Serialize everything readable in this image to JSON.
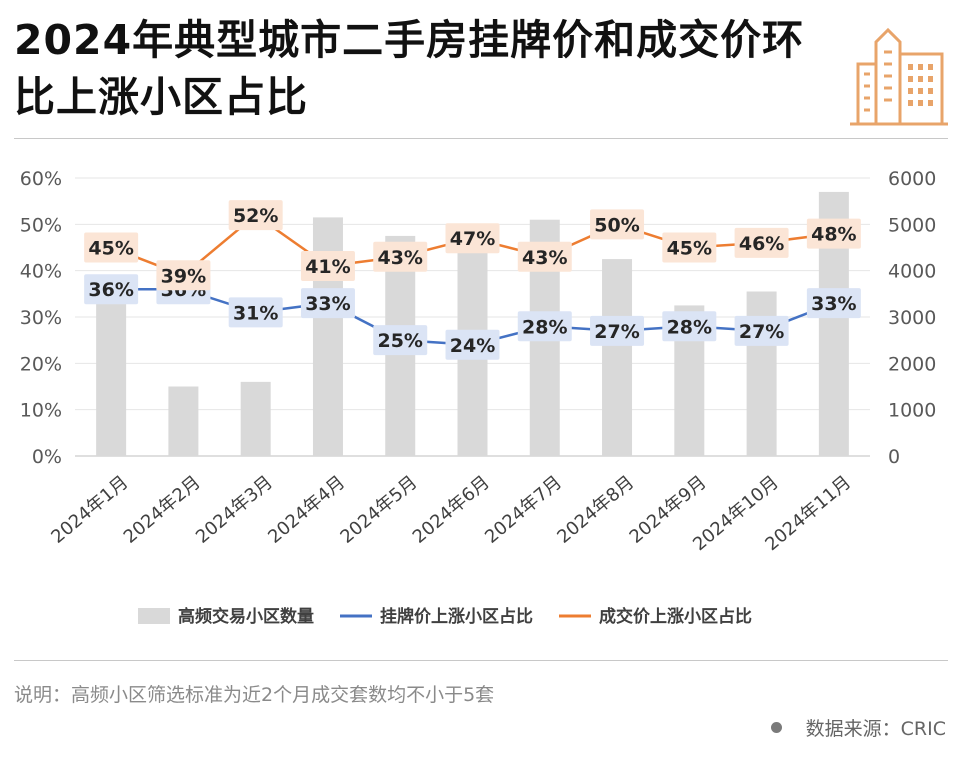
{
  "title": "2024年典型城市二手房挂牌价和成交价环比上涨小区占比",
  "note": "说明：高频小区筛选标准为近2个月成交套数均不小于5套",
  "source": "数据来源：CRIC",
  "colors": {
    "bar": "#d9d9d9",
    "listing": "#4472c4",
    "deal": "#ed7d31",
    "listing_label_bg": "#dbe4f5",
    "deal_label_bg": "#fbe5d6",
    "logo": "#e8a46a"
  },
  "chart_data": {
    "type": "bar+line",
    "categories": [
      "2024年1月",
      "2024年2月",
      "2024年3月",
      "2024年4月",
      "2024年5月",
      "2024年6月",
      "2024年7月",
      "2024年8月",
      "2024年9月",
      "2024年10月",
      "2024年11月"
    ],
    "y_left_ticks": [
      "0%",
      "10%",
      "20%",
      "30%",
      "40%",
      "50%",
      "60%"
    ],
    "y_left_lim": [
      0,
      60
    ],
    "y_right_ticks": [
      "0",
      "1000",
      "2000",
      "3000",
      "4000",
      "5000",
      "6000"
    ],
    "y_right_lim": [
      0,
      6000
    ],
    "series": [
      {
        "name": "高频交易小区数量",
        "type": "bar",
        "axis": "right",
        "values": [
          3700,
          1500,
          1600,
          5150,
          4750,
          4650,
          5100,
          4250,
          3250,
          3550,
          5700
        ]
      },
      {
        "name": "挂牌价上涨小区占比",
        "type": "line",
        "axis": "left",
        "values": [
          36,
          36,
          31,
          33,
          25,
          24,
          28,
          27,
          28,
          27,
          33
        ],
        "labels": [
          "36%",
          "36%",
          "31%",
          "33%",
          "25%",
          "24%",
          "28%",
          "27%",
          "28%",
          "27%",
          "33%"
        ]
      },
      {
        "name": "成交价上涨小区占比",
        "type": "line",
        "axis": "left",
        "values": [
          45,
          39,
          52,
          41,
          43,
          47,
          43,
          50,
          45,
          46,
          48
        ],
        "labels": [
          "45%",
          "39%",
          "52%",
          "41%",
          "43%",
          "47%",
          "43%",
          "50%",
          "45%",
          "46%",
          "48%"
        ]
      }
    ],
    "legend_position": "bottom",
    "grid": true
  }
}
